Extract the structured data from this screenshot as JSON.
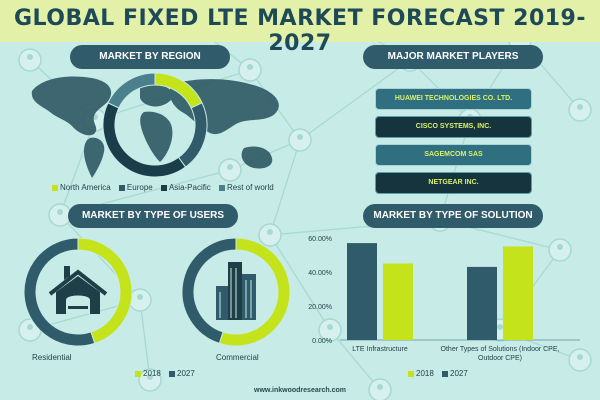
{
  "title": "GLOBAL FIXED LTE MARKET FORECAST 2019-2027",
  "footer": "www.inkwoodresearch.com",
  "colors": {
    "background": "#c7ebe6",
    "title_band": "#e3f0a8",
    "dark_teal": "#2f5b6b",
    "lime": "#c4e31a",
    "navy": "#1a3d4a"
  },
  "sections": {
    "region": "MARKET BY REGION",
    "players": "MAJOR MARKET PLAYERS",
    "users": "MARKET BY TYPE OF USERS",
    "solution": "MARKET BY TYPE OF SOLUTION"
  },
  "players": [
    "HUAWEI TECHNOLOGIES CO. LTD.",
    "CISCO SYSTEMS, INC.",
    "SAGEMCOM SAS",
    "NETGEAR INC."
  ],
  "icons": {
    "users_residential": "house-icon",
    "users_commercial": "office-buildings-icon",
    "region_background": "world-map-icon"
  },
  "chart_data": [
    {
      "type": "pie",
      "name": "market-by-region",
      "categories": [
        "North America",
        "Europe",
        "Asia-Pacific",
        "Rest of world"
      ],
      "values": [
        18,
        22,
        42,
        18
      ],
      "colors": [
        "#c4e31a",
        "#2f5b6b",
        "#1a3d4a",
        "#4a7f8c"
      ]
    },
    {
      "type": "pie",
      "name": "residential",
      "label": "Residential",
      "categories": [
        "2018",
        "2027"
      ],
      "values": [
        45,
        55
      ],
      "colors": [
        "#c4e31a",
        "#2f5b6b"
      ]
    },
    {
      "type": "pie",
      "name": "commercial",
      "label": "Commercial",
      "categories": [
        "2018",
        "2027"
      ],
      "values": [
        55,
        45
      ],
      "colors": [
        "#c4e31a",
        "#2f5b6b"
      ]
    },
    {
      "type": "bar",
      "name": "market-by-type-of-solution",
      "categories": [
        "LTE Infrastructure",
        "Other Types of Solutions (Indoor CPE, Outdoor CPE)"
      ],
      "series": [
        {
          "name": "2018",
          "values": [
            57,
            43
          ],
          "color": "#2f5b6b"
        },
        {
          "name": "2027",
          "values": [
            45,
            55
          ],
          "color": "#c4e31a"
        }
      ],
      "ylim": [
        0,
        60
      ],
      "yticks": [
        "0.00%",
        "20.00%",
        "40.00%",
        "60.00%"
      ],
      "ytick_values": [
        0,
        20,
        40,
        60
      ]
    }
  ],
  "users_legend": [
    "2018",
    "2027"
  ],
  "solution_legend": [
    "2018",
    "2027"
  ]
}
